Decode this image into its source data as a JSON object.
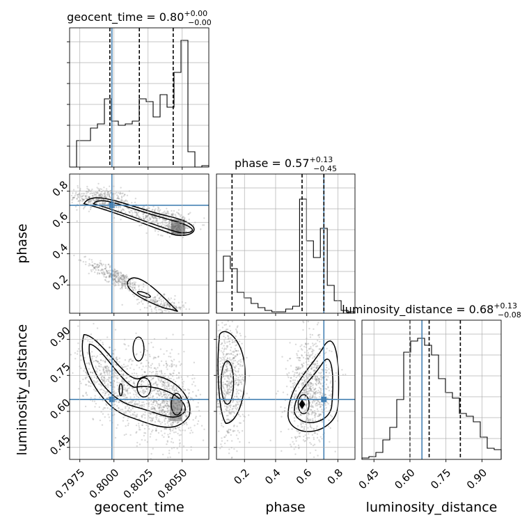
{
  "chart_data": {
    "type": "corner",
    "parameters": [
      "geocent_time",
      "phase",
      "luminosity_distance"
    ],
    "truths": {
      "geocent_time": 0.79985,
      "phase": 0.71,
      "luminosity_distance": 0.65
    },
    "colors": {
      "truth": "#4682b4",
      "hist": "#000000",
      "grid": "#b0b0b0",
      "scatter": "#7a7a7a"
    },
    "titles": [
      {
        "param": "geocent_time",
        "prefix": "geocent_time = 0.80",
        "plus": "+0.00",
        "minus": "−0.00"
      },
      {
        "param": "phase",
        "prefix": "phase = 0.57",
        "plus": "+0.13",
        "minus": "−0.45"
      },
      {
        "param": "luminosity_distance",
        "prefix": "luminosity_distance = 0.68",
        "plus": "+0.13",
        "minus": "−0.08"
      }
    ],
    "axes": {
      "geocent_time": {
        "range": [
          0.79675,
          0.80695
        ],
        "ticks": [
          0.7975,
          0.8,
          0.8025,
          0.805
        ],
        "tick_labels": [
          "0.7975",
          "0.8000",
          "0.8025",
          "0.8050"
        ],
        "label": "geocent_time"
      },
      "phase": {
        "range": [
          0.02,
          0.91
        ],
        "ticks": [
          0.2,
          0.4,
          0.6,
          0.8
        ],
        "tick_labels": [
          "0.2",
          "0.4",
          "0.6",
          "0.8"
        ],
        "label": "phase"
      },
      "luminosity_distance": {
        "range": [
          0.4,
          0.98
        ],
        "ticks": [
          0.45,
          0.6,
          0.75,
          0.9
        ],
        "tick_labels": [
          "0.45",
          "0.60",
          "0.75",
          "0.90"
        ],
        "label": "luminosity_distance"
      }
    },
    "histograms": {
      "geocent_time": {
        "edges": [
          0.79675,
          0.79726,
          0.79777,
          0.79828,
          0.79879,
          0.7993,
          0.79981,
          0.80032,
          0.80083,
          0.80134,
          0.80185,
          0.80236,
          0.80287,
          0.80338,
          0.80389,
          0.8044,
          0.80491,
          0.80542,
          0.80593,
          0.80644,
          0.80695
        ],
        "counts": [
          0,
          0.19,
          0.19,
          0.28,
          0.31,
          0.49,
          0.33,
          0.3,
          0.31,
          0.33,
          0.49,
          0.47,
          0.36,
          0.52,
          0.43,
          0.68,
          0.91,
          0.11,
          0,
          0.01
        ],
        "quantile_lines": [
          0.7997,
          0.80186,
          0.80434
        ]
      },
      "phase": {
        "edges": [
          0.02,
          0.0645,
          0.109,
          0.1535,
          0.198,
          0.2425,
          0.287,
          0.3315,
          0.376,
          0.4205,
          0.465,
          0.5095,
          0.554,
          0.5985,
          0.643,
          0.6875,
          0.732,
          0.7765,
          0.821,
          0.8655,
          0.91
        ],
        "counts": [
          0.23,
          0.41,
          0.32,
          0.15,
          0.11,
          0.07,
          0.04,
          0.02,
          0.01,
          0.01,
          0.03,
          0.05,
          0.82,
          0.52,
          0.4,
          0.61,
          0.2,
          0.09,
          0.02,
          0.01
        ],
        "quantile_lines": [
          0.12,
          0.57,
          0.71
        ]
      },
      "luminosity_distance": {
        "edges": [
          0.4,
          0.429,
          0.458,
          0.487,
          0.516,
          0.545,
          0.574,
          0.603,
          0.632,
          0.661,
          0.69,
          0.719,
          0.748,
          0.777,
          0.806,
          0.835,
          0.864,
          0.893,
          0.922,
          0.951,
          0.98
        ],
        "counts": [
          0.01,
          0.02,
          0.05,
          0.14,
          0.23,
          0.43,
          0.77,
          0.85,
          0.87,
          0.82,
          0.75,
          0.58,
          0.48,
          0.44,
          0.33,
          0.31,
          0.27,
          0.16,
          0.08,
          0.07
        ],
        "quantile_lines": [
          0.6,
          0.68,
          0.81
        ]
      }
    }
  }
}
